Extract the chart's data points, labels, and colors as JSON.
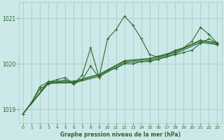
{
  "title": "Graphe pression niveau de la mer (hPa)",
  "bg_color": "#cce8e8",
  "grid_color": "#aacccc",
  "line_color": "#2d6a2d",
  "xlim": [
    -0.5,
    23.5
  ],
  "ylim": [
    1018.7,
    1021.35
  ],
  "yticks": [
    1019,
    1020,
    1021
  ],
  "xticks": [
    0,
    1,
    2,
    3,
    4,
    5,
    6,
    7,
    8,
    9,
    10,
    11,
    12,
    13,
    14,
    15,
    16,
    17,
    18,
    19,
    20,
    21,
    22,
    23
  ],
  "series": [
    {
      "x": [
        0,
        1,
        2,
        3,
        4,
        5,
        6,
        7,
        8,
        9,
        10,
        11,
        12,
        13,
        14,
        15,
        16,
        17,
        18,
        19,
        20,
        21,
        22,
        23
      ],
      "y": [
        1018.9,
        1019.15,
        1019.5,
        1019.6,
        1019.65,
        1019.7,
        1019.55,
        1019.75,
        1020.35,
        1019.7,
        1020.55,
        1020.75,
        1021.05,
        1020.85,
        1020.55,
        1020.2,
        1020.15,
        1020.2,
        1020.3,
        1020.35,
        1020.5,
        1020.8,
        1020.65,
        1020.45
      ]
    },
    {
      "x": [
        0,
        1,
        2,
        3,
        4,
        5,
        6,
        7,
        8,
        9,
        10,
        11,
        12,
        13,
        14,
        15,
        16,
        17,
        18,
        19,
        20,
        21,
        22,
        23
      ],
      "y": [
        1018.9,
        1019.15,
        1019.45,
        1019.55,
        1019.6,
        1019.65,
        1019.55,
        1019.65,
        1019.95,
        1019.7,
        1019.85,
        1019.9,
        1020.0,
        1020.0,
        1020.05,
        1020.05,
        1020.1,
        1020.15,
        1020.2,
        1020.25,
        1020.3,
        1020.45,
        1020.55,
        1020.45
      ]
    },
    {
      "x": [
        0,
        3,
        6,
        9,
        12,
        15,
        18,
        21,
        23
      ],
      "y": [
        1018.9,
        1019.57,
        1019.58,
        1019.72,
        1020.02,
        1020.07,
        1020.22,
        1020.47,
        1020.42
      ]
    },
    {
      "x": [
        0,
        3,
        6,
        9,
        12,
        15,
        18,
        21,
        23
      ],
      "y": [
        1018.9,
        1019.59,
        1019.6,
        1019.75,
        1020.05,
        1020.1,
        1020.25,
        1020.5,
        1020.44
      ]
    },
    {
      "x": [
        0,
        3,
        6,
        9,
        12,
        15,
        18,
        21,
        23
      ],
      "y": [
        1018.9,
        1019.61,
        1019.62,
        1019.77,
        1020.07,
        1020.12,
        1020.27,
        1020.52,
        1020.46
      ]
    }
  ]
}
